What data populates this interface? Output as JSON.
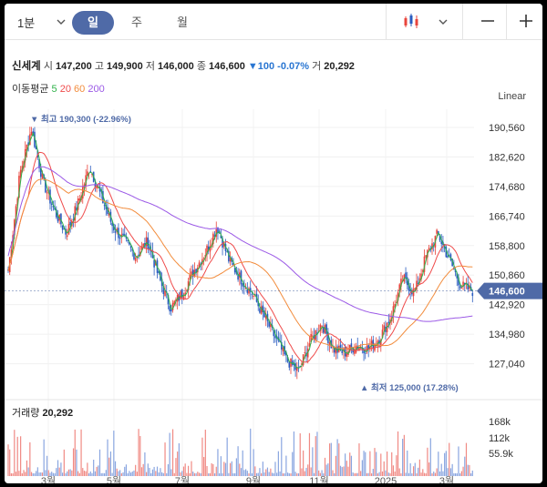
{
  "toolbar": {
    "interval_label": "1분",
    "tabs": [
      "일",
      "주",
      "월"
    ],
    "active_tab": 0
  },
  "quote": {
    "name": "신세계",
    "open_label": "시",
    "open": "147,200",
    "high_label": "고",
    "high": "149,900",
    "low_label": "저",
    "low": "146,000",
    "close_label": "종",
    "close": "146,600",
    "change": "▼100 -0.07%",
    "volume_label": "거",
    "volume": "20,292"
  },
  "ma": {
    "label": "이동평균",
    "periods": [
      {
        "label": "5",
        "color": "#2fb24a"
      },
      {
        "label": "20",
        "color": "#ef4b4b"
      },
      {
        "label": "60",
        "color": "#f28c3c"
      },
      {
        "label": "200",
        "color": "#9b59e6"
      }
    ]
  },
  "scale_mode": "Linear",
  "price_axis": [
    "190,560",
    "182,620",
    "174,680",
    "166,740",
    "158,800",
    "150,860",
    "142,920",
    "134,980",
    "127,040"
  ],
  "current_price_tag": "146,600",
  "annotations": {
    "max": "▼ 최고 190,300 (-22.96%)",
    "min": "▲ 최저 125,000 (17.28%)"
  },
  "volume_panel": {
    "label": "거래량",
    "value": "20,292",
    "axis": [
      "168k",
      "112k",
      "55.9k"
    ]
  },
  "x_axis": [
    "3월",
    "5월",
    "7월",
    "9월",
    "11월",
    "2025",
    "3월"
  ],
  "colors": {
    "up": "#e8453c",
    "down": "#2a5cc0",
    "accent": "#4f6aa7",
    "change": "#2a76d2"
  },
  "chart_data": {
    "type": "candlestick",
    "y_range": [
      124000,
      193000
    ],
    "series_keypoints": [
      {
        "name": "price",
        "values": [
          152000,
          178000,
          190300,
          176000,
          168000,
          162000,
          170000,
          180000,
          172000,
          164000,
          160000,
          156000,
          160000,
          150000,
          142000,
          146000,
          152000,
          157000,
          164000,
          155000,
          150000,
          146000,
          140000,
          134000,
          128000,
          125000,
          133000,
          138000,
          131000,
          130000,
          132000,
          131000,
          134000,
          140000,
          150000,
          146000,
          156000,
          162000,
          155000,
          148000,
          146600
        ]
      }
    ]
  }
}
